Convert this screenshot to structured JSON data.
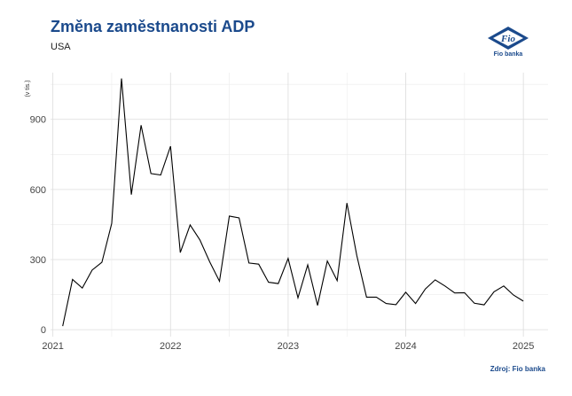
{
  "header": {
    "title": "Změna zaměstnanosti ADP",
    "subtitle": "USA"
  },
  "logo": {
    "mark": "Fio",
    "label": "Fio banka",
    "color": "#1b4a8c"
  },
  "source": "Zdroj: Fio banka",
  "chart_data": {
    "type": "line",
    "title": "Změna zaměstnanosti ADP",
    "subtitle": "USA",
    "ylabel": "(v tis.)",
    "xlabel": "",
    "ylim": [
      -30,
      1100
    ],
    "xlim": [
      2020.98,
      2025.21
    ],
    "grid": true,
    "legend": "none",
    "line_color": "#000000",
    "y_ticks": [
      0,
      300,
      600,
      900
    ],
    "x_ticks": [
      2021,
      2022,
      2023,
      2024,
      2025
    ],
    "x_tick_labels": [
      "2021",
      "2022",
      "2023",
      "2024",
      "2025"
    ],
    "series": [
      {
        "x": [
          "2021-02",
          "2021-03",
          "2021-04",
          "2021-05",
          "2021-06",
          "2021-07",
          "2021-08",
          "2021-09",
          "2021-10",
          "2021-11",
          "2021-12",
          "2022-01",
          "2022-02",
          "2022-03",
          "2022-04",
          "2022-05",
          "2022-06",
          "2022-07",
          "2022-08",
          "2022-09",
          "2022-10",
          "2022-11",
          "2022-12",
          "2023-01",
          "2023-02",
          "2023-03",
          "2023-04",
          "2023-05",
          "2023-06",
          "2023-07",
          "2023-08",
          "2023-09",
          "2023-10",
          "2023-11",
          "2023-12",
          "2024-01",
          "2024-02",
          "2024-03",
          "2024-04",
          "2024-05",
          "2024-06",
          "2024-07",
          "2024-08",
          "2024-09",
          "2024-10",
          "2024-11",
          "2024-12",
          "2025-01"
        ],
        "values": [
          15,
          215,
          178,
          255,
          288,
          455,
          1075,
          578,
          875,
          668,
          662,
          785,
          330,
          448,
          384,
          290,
          207,
          486,
          478,
          285,
          280,
          203,
          197,
          305,
          136,
          277,
          104,
          294,
          210,
          542,
          318,
          139,
          139,
          112,
          107,
          160,
          112,
          174,
          213,
          187,
          157,
          158,
          113,
          106,
          162,
          187,
          148,
          122
        ]
      }
    ]
  }
}
